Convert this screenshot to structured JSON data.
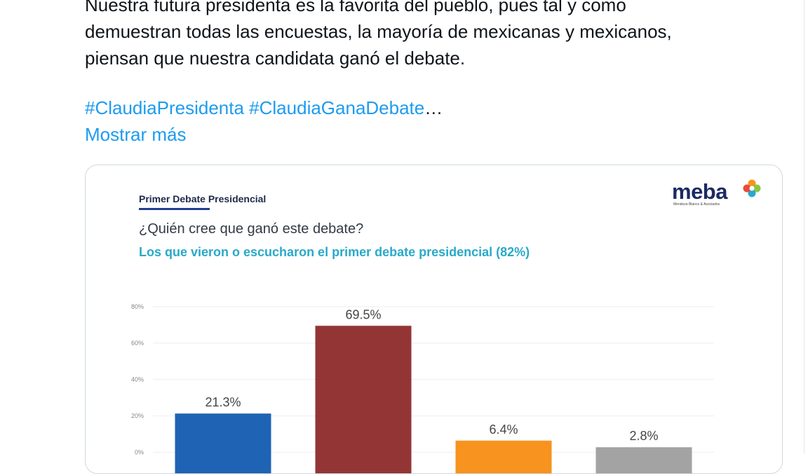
{
  "tweet": {
    "lines": [
      "Nuestra futura presidenta es la favorita del pueblo, pues tal y como",
      "demuestran todas las encuestas, la mayoría de mexicanas y mexicanos,",
      "piensan que nuestra candidata ganó el debate."
    ],
    "hashtag_1": "#ClaudiaPresidenta",
    "hashtag_2": "#ClaudiaGanaDebate",
    "ellipsis": "…",
    "show_more": "Mostrar más"
  },
  "card": {
    "header_title": "Primer Debate Presidencial",
    "question": "¿Quién cree que ganó este debate?",
    "subtitle": "Los que vieron o escucharon el primer debate presidencial (82%)",
    "logo": {
      "word": "meba",
      "subtitle": "Mendoza Blanco & Asociados"
    }
  },
  "chart_data": {
    "type": "bar",
    "values": [
      21.3,
      69.5,
      6.4,
      2.8
    ],
    "data_labels": [
      "21.3%",
      "69.5%",
      "6.4%",
      "2.8%"
    ],
    "colors": [
      "#1f63b4",
      "#943535",
      "#f7931e",
      "#a3a3a3"
    ],
    "ylim": [
      0,
      80
    ],
    "yticks": [
      0,
      20,
      40,
      60,
      80
    ],
    "ytick_labels": [
      "0%",
      "20%",
      "40%",
      "60%",
      "80%"
    ],
    "grid": true
  }
}
